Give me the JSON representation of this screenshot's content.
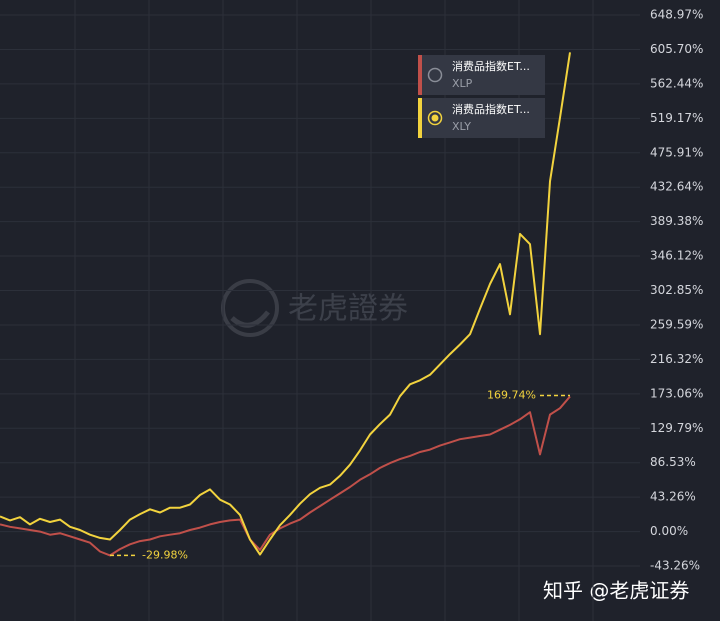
{
  "chart_data": {
    "type": "line",
    "series": [
      {
        "name": "消费品指数ET...",
        "ticker": "XLP",
        "color": "#c0504a",
        "values": [
          9,
          6,
          4,
          2,
          0,
          -4,
          -2,
          -6,
          -10,
          -14,
          -25,
          -29.98,
          -22,
          -16,
          -12,
          -10,
          -6,
          -4,
          -2,
          2,
          5,
          9,
          12,
          14,
          15,
          -10,
          -23,
          -4,
          4,
          10,
          15,
          24,
          32,
          40,
          48,
          56,
          65,
          72,
          80,
          86,
          91,
          95,
          100,
          103,
          108,
          112,
          116,
          118,
          120,
          122,
          128,
          134,
          141,
          150,
          97,
          147,
          155,
          169.74
        ]
      },
      {
        "name": "消费品指数ET...",
        "ticker": "XLY",
        "color": "#f2d33e",
        "values": [
          19,
          14,
          18,
          9,
          16,
          12,
          15,
          6,
          2,
          -4,
          -8,
          -10,
          2,
          15,
          22,
          28,
          24,
          30,
          30,
          34,
          46,
          53,
          40,
          34,
          21,
          -10,
          -29,
          -10,
          8,
          21,
          35,
          47,
          55,
          59,
          70,
          84,
          102,
          122,
          135,
          147,
          170,
          185,
          190,
          197,
          210,
          223,
          235,
          248,
          280,
          311,
          336,
          273,
          374,
          361,
          248,
          440,
          520,
          602
        ]
      }
    ],
    "annotations": [
      "-29.98%",
      "169.74%"
    ],
    "ylim": [
      -43.26,
      648.97
    ],
    "yticks": [
      {
        "value": 648.97,
        "label": "648.97%"
      },
      {
        "value": 605.7,
        "label": "605.70%"
      },
      {
        "value": 562.44,
        "label": "562.44%"
      },
      {
        "value": 519.17,
        "label": "519.17%"
      },
      {
        "value": 475.91,
        "label": "475.91%"
      },
      {
        "value": 432.64,
        "label": "432.64%"
      },
      {
        "value": 389.38,
        "label": "389.38%"
      },
      {
        "value": 346.12,
        "label": "346.12%"
      },
      {
        "value": 302.85,
        "label": "302.85%"
      },
      {
        "value": 259.59,
        "label": "259.59%"
      },
      {
        "value": 216.32,
        "label": "216.32%"
      },
      {
        "value": 173.06,
        "label": "173.06%"
      },
      {
        "value": 129.79,
        "label": "129.79%"
      },
      {
        "value": 86.53,
        "label": "86.53%"
      },
      {
        "value": 43.26,
        "label": "43.26%"
      },
      {
        "value": 0,
        "label": "0.00%"
      },
      {
        "value": -43.26,
        "label": "-43.26%"
      }
    ],
    "grid": true,
    "selected_series": 1,
    "watermark": "老虎證券",
    "footer": "知乎 @老虎证券"
  }
}
